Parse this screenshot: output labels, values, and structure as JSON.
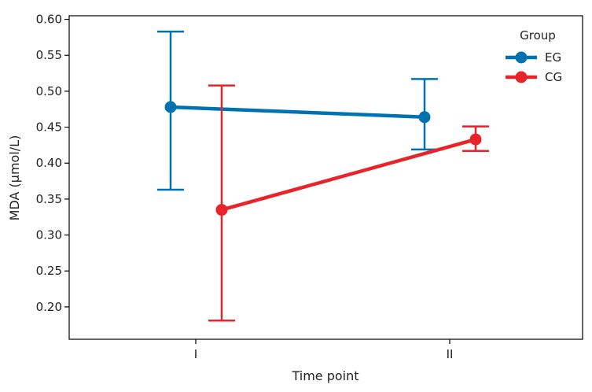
{
  "chart_data": {
    "type": "line",
    "xlabel": "Time point",
    "ylabel": "MDA (μmol/L)",
    "categories": [
      "I",
      "II"
    ],
    "ylim": [
      0.155,
      0.605
    ],
    "yticks": [
      "0.20",
      "0.25",
      "0.30",
      "0.35",
      "0.40",
      "0.45",
      "0.50",
      "0.55",
      "0.60"
    ],
    "legend": {
      "title": "Group",
      "placement": "top-right"
    },
    "grid": false,
    "series": [
      {
        "name": "EG",
        "color": "#0072b2",
        "values": [
          0.478,
          0.464
        ],
        "error_low": [
          0.363,
          0.419
        ],
        "error_high": [
          0.583,
          0.517
        ]
      },
      {
        "name": "CG",
        "color": "#e8232a",
        "values": [
          0.335,
          0.433
        ],
        "error_low": [
          0.181,
          0.417
        ],
        "error_high": [
          0.508,
          0.451
        ]
      }
    ]
  }
}
